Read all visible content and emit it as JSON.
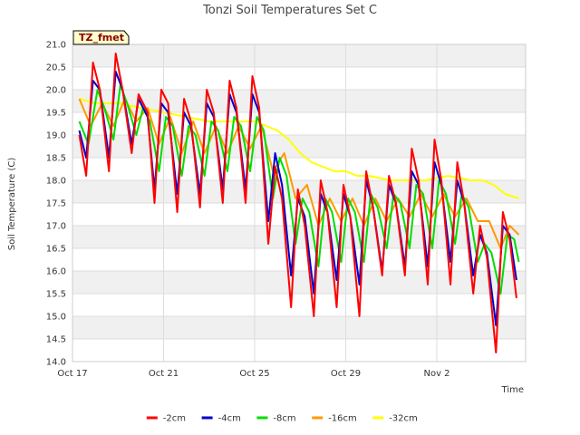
{
  "chart_data": {
    "type": "line",
    "title": "Tonzi Soil Temperatures Set C",
    "site_label": "TZ_fmet",
    "xlabel": "Time",
    "ylabel": "Soil Temperature (C)",
    "ylim": [
      14.0,
      21.0
    ],
    "xlim_days": [
      0,
      19.9
    ],
    "x_ticks": [
      {
        "day": 0,
        "label": "Oct 17"
      },
      {
        "day": 4,
        "label": "Oct 21"
      },
      {
        "day": 8,
        "label": "Oct 25"
      },
      {
        "day": 12,
        "label": "Oct 29"
      },
      {
        "day": 16,
        "label": "Nov 2"
      }
    ],
    "y_ticks": [
      "14.0",
      "14.5",
      "15.0",
      "15.5",
      "16.0",
      "16.5",
      "17.0",
      "17.5",
      "18.0",
      "18.5",
      "19.0",
      "19.5",
      "20.0",
      "20.5",
      "21.0"
    ],
    "grid": true,
    "legend_position": "bottom",
    "series": [
      {
        "name": "-2cm",
        "color": "#ff0000",
        "points": [
          [
            0.3,
            19.0
          ],
          [
            0.6,
            18.1
          ],
          [
            0.9,
            20.6
          ],
          [
            1.2,
            20.0
          ],
          [
            1.6,
            18.2
          ],
          [
            1.9,
            20.8
          ],
          [
            2.2,
            20.0
          ],
          [
            2.6,
            18.6
          ],
          [
            2.9,
            19.9
          ],
          [
            3.3,
            19.5
          ],
          [
            3.6,
            17.5
          ],
          [
            3.9,
            20.0
          ],
          [
            4.2,
            19.7
          ],
          [
            4.6,
            17.3
          ],
          [
            4.9,
            19.8
          ],
          [
            5.2,
            19.3
          ],
          [
            5.6,
            17.4
          ],
          [
            5.9,
            20.0
          ],
          [
            6.2,
            19.5
          ],
          [
            6.6,
            17.5
          ],
          [
            6.9,
            20.2
          ],
          [
            7.2,
            19.6
          ],
          [
            7.6,
            17.5
          ],
          [
            7.9,
            20.3
          ],
          [
            8.2,
            19.6
          ],
          [
            8.6,
            16.6
          ],
          [
            8.9,
            18.3
          ],
          [
            9.2,
            17.6
          ],
          [
            9.6,
            15.2
          ],
          [
            9.9,
            17.8
          ],
          [
            10.2,
            17.0
          ],
          [
            10.6,
            15.0
          ],
          [
            10.9,
            18.0
          ],
          [
            11.2,
            17.3
          ],
          [
            11.6,
            15.2
          ],
          [
            11.9,
            17.9
          ],
          [
            12.2,
            17.2
          ],
          [
            12.6,
            15.0
          ],
          [
            12.9,
            18.2
          ],
          [
            13.2,
            17.4
          ],
          [
            13.6,
            15.9
          ],
          [
            13.9,
            18.1
          ],
          [
            14.2,
            17.5
          ],
          [
            14.6,
            15.9
          ],
          [
            14.9,
            18.7
          ],
          [
            15.2,
            18.0
          ],
          [
            15.6,
            15.7
          ],
          [
            15.9,
            18.9
          ],
          [
            16.2,
            18.0
          ],
          [
            16.6,
            15.7
          ],
          [
            16.9,
            18.4
          ],
          [
            17.2,
            17.5
          ],
          [
            17.6,
            15.5
          ],
          [
            17.9,
            17.0
          ],
          [
            18.2,
            16.3
          ],
          [
            18.6,
            14.2
          ],
          [
            18.9,
            17.3
          ],
          [
            19.2,
            16.7
          ],
          [
            19.5,
            15.4
          ]
        ]
      },
      {
        "name": "-4cm",
        "color": "#0000cc",
        "points": [
          [
            0.3,
            19.1
          ],
          [
            0.6,
            18.5
          ],
          [
            0.9,
            20.2
          ],
          [
            1.2,
            20.0
          ],
          [
            1.6,
            18.5
          ],
          [
            1.9,
            20.4
          ],
          [
            2.2,
            20.0
          ],
          [
            2.6,
            18.8
          ],
          [
            2.9,
            19.8
          ],
          [
            3.3,
            19.4
          ],
          [
            3.6,
            17.8
          ],
          [
            3.9,
            19.7
          ],
          [
            4.2,
            19.5
          ],
          [
            4.6,
            17.7
          ],
          [
            4.9,
            19.5
          ],
          [
            5.2,
            19.2
          ],
          [
            5.6,
            17.7
          ],
          [
            5.9,
            19.7
          ],
          [
            6.2,
            19.4
          ],
          [
            6.6,
            17.8
          ],
          [
            6.9,
            19.9
          ],
          [
            7.2,
            19.5
          ],
          [
            7.6,
            17.8
          ],
          [
            7.9,
            19.9
          ],
          [
            8.2,
            19.5
          ],
          [
            8.6,
            17.1
          ],
          [
            8.9,
            18.6
          ],
          [
            9.2,
            17.9
          ],
          [
            9.6,
            15.9
          ],
          [
            9.9,
            17.6
          ],
          [
            10.2,
            17.2
          ],
          [
            10.6,
            15.5
          ],
          [
            10.9,
            17.7
          ],
          [
            11.2,
            17.3
          ],
          [
            11.6,
            15.8
          ],
          [
            11.9,
            17.7
          ],
          [
            12.2,
            17.2
          ],
          [
            12.6,
            15.7
          ],
          [
            12.9,
            18.0
          ],
          [
            13.2,
            17.4
          ],
          [
            13.6,
            16.0
          ],
          [
            13.9,
            17.9
          ],
          [
            14.2,
            17.5
          ],
          [
            14.6,
            16.1
          ],
          [
            14.9,
            18.2
          ],
          [
            15.2,
            17.9
          ],
          [
            15.6,
            16.1
          ],
          [
            15.9,
            18.4
          ],
          [
            16.2,
            17.9
          ],
          [
            16.6,
            16.2
          ],
          [
            16.9,
            18.0
          ],
          [
            17.2,
            17.5
          ],
          [
            17.6,
            15.9
          ],
          [
            17.9,
            16.8
          ],
          [
            18.2,
            16.4
          ],
          [
            18.6,
            14.8
          ],
          [
            18.9,
            17.0
          ],
          [
            19.2,
            16.8
          ],
          [
            19.5,
            15.8
          ]
        ]
      },
      {
        "name": "-8cm",
        "color": "#00dd00",
        "points": [
          [
            0.3,
            19.3
          ],
          [
            0.7,
            18.8
          ],
          [
            1.1,
            20.0
          ],
          [
            1.4,
            19.6
          ],
          [
            1.8,
            18.9
          ],
          [
            2.1,
            20.1
          ],
          [
            2.4,
            19.7
          ],
          [
            2.8,
            19.0
          ],
          [
            3.1,
            19.6
          ],
          [
            3.4,
            19.3
          ],
          [
            3.8,
            18.2
          ],
          [
            4.1,
            19.4
          ],
          [
            4.4,
            19.2
          ],
          [
            4.8,
            18.1
          ],
          [
            5.1,
            19.2
          ],
          [
            5.4,
            19.0
          ],
          [
            5.8,
            18.1
          ],
          [
            6.1,
            19.3
          ],
          [
            6.4,
            19.1
          ],
          [
            6.8,
            18.2
          ],
          [
            7.1,
            19.4
          ],
          [
            7.4,
            19.2
          ],
          [
            7.8,
            18.2
          ],
          [
            8.1,
            19.4
          ],
          [
            8.4,
            19.1
          ],
          [
            8.8,
            17.6
          ],
          [
            9.1,
            18.5
          ],
          [
            9.4,
            18.1
          ],
          [
            9.8,
            16.6
          ],
          [
            10.1,
            17.6
          ],
          [
            10.4,
            17.3
          ],
          [
            10.8,
            16.1
          ],
          [
            11.1,
            17.6
          ],
          [
            11.4,
            17.3
          ],
          [
            11.8,
            16.2
          ],
          [
            12.1,
            17.6
          ],
          [
            12.4,
            17.3
          ],
          [
            12.8,
            16.2
          ],
          [
            13.1,
            17.7
          ],
          [
            13.4,
            17.4
          ],
          [
            13.8,
            16.5
          ],
          [
            14.1,
            17.7
          ],
          [
            14.4,
            17.5
          ],
          [
            14.8,
            16.5
          ],
          [
            15.1,
            17.9
          ],
          [
            15.4,
            17.7
          ],
          [
            15.8,
            16.5
          ],
          [
            16.1,
            18.0
          ],
          [
            16.4,
            17.7
          ],
          [
            16.8,
            16.6
          ],
          [
            17.1,
            17.7
          ],
          [
            17.4,
            17.4
          ],
          [
            17.8,
            16.2
          ],
          [
            18.1,
            16.6
          ],
          [
            18.4,
            16.4
          ],
          [
            18.8,
            15.5
          ],
          [
            19.1,
            16.8
          ],
          [
            19.4,
            16.7
          ],
          [
            19.6,
            16.2
          ]
        ]
      },
      {
        "name": "-16cm",
        "color": "#ff9900",
        "points": [
          [
            0.3,
            19.8
          ],
          [
            0.8,
            19.2
          ],
          [
            1.3,
            19.7
          ],
          [
            1.8,
            19.2
          ],
          [
            2.3,
            19.8
          ],
          [
            2.8,
            19.3
          ],
          [
            3.3,
            19.6
          ],
          [
            3.8,
            18.8
          ],
          [
            4.3,
            19.4
          ],
          [
            4.8,
            18.6
          ],
          [
            5.3,
            19.3
          ],
          [
            5.8,
            18.6
          ],
          [
            6.3,
            19.2
          ],
          [
            6.8,
            18.6
          ],
          [
            7.3,
            19.2
          ],
          [
            7.8,
            18.7
          ],
          [
            8.3,
            19.2
          ],
          [
            8.8,
            18.2
          ],
          [
            9.3,
            18.6
          ],
          [
            9.8,
            17.6
          ],
          [
            10.3,
            17.9
          ],
          [
            10.8,
            17.0
          ],
          [
            11.3,
            17.6
          ],
          [
            11.8,
            17.1
          ],
          [
            12.3,
            17.6
          ],
          [
            12.8,
            17.0
          ],
          [
            13.3,
            17.6
          ],
          [
            13.8,
            17.1
          ],
          [
            14.3,
            17.6
          ],
          [
            14.8,
            17.2
          ],
          [
            15.3,
            17.7
          ],
          [
            15.8,
            17.2
          ],
          [
            16.3,
            17.7
          ],
          [
            16.8,
            17.2
          ],
          [
            17.3,
            17.6
          ],
          [
            17.8,
            17.1
          ],
          [
            18.3,
            17.1
          ],
          [
            18.8,
            16.5
          ],
          [
            19.2,
            17.0
          ],
          [
            19.6,
            16.8
          ]
        ]
      },
      {
        "name": "-32cm",
        "color": "#ffff00",
        "points": [
          [
            0.3,
            19.8
          ],
          [
            1.0,
            19.7
          ],
          [
            2.0,
            19.7
          ],
          [
            3.0,
            19.6
          ],
          [
            4.0,
            19.5
          ],
          [
            5.0,
            19.4
          ],
          [
            6.0,
            19.3
          ],
          [
            7.0,
            19.3
          ],
          [
            8.0,
            19.3
          ],
          [
            8.5,
            19.2
          ],
          [
            9.0,
            19.1
          ],
          [
            9.5,
            18.9
          ],
          [
            10.0,
            18.6
          ],
          [
            10.5,
            18.4
          ],
          [
            11.0,
            18.3
          ],
          [
            11.5,
            18.2
          ],
          [
            12.0,
            18.2
          ],
          [
            12.5,
            18.1
          ],
          [
            13.0,
            18.1
          ],
          [
            13.5,
            18.05
          ],
          [
            14.0,
            18.0
          ],
          [
            14.5,
            18.0
          ],
          [
            15.0,
            18.0
          ],
          [
            15.5,
            18.0
          ],
          [
            16.0,
            18.05
          ],
          [
            16.5,
            18.1
          ],
          [
            17.0,
            18.05
          ],
          [
            17.5,
            18.0
          ],
          [
            18.0,
            18.0
          ],
          [
            18.5,
            17.9
          ],
          [
            19.0,
            17.7
          ],
          [
            19.6,
            17.6
          ]
        ]
      }
    ]
  }
}
